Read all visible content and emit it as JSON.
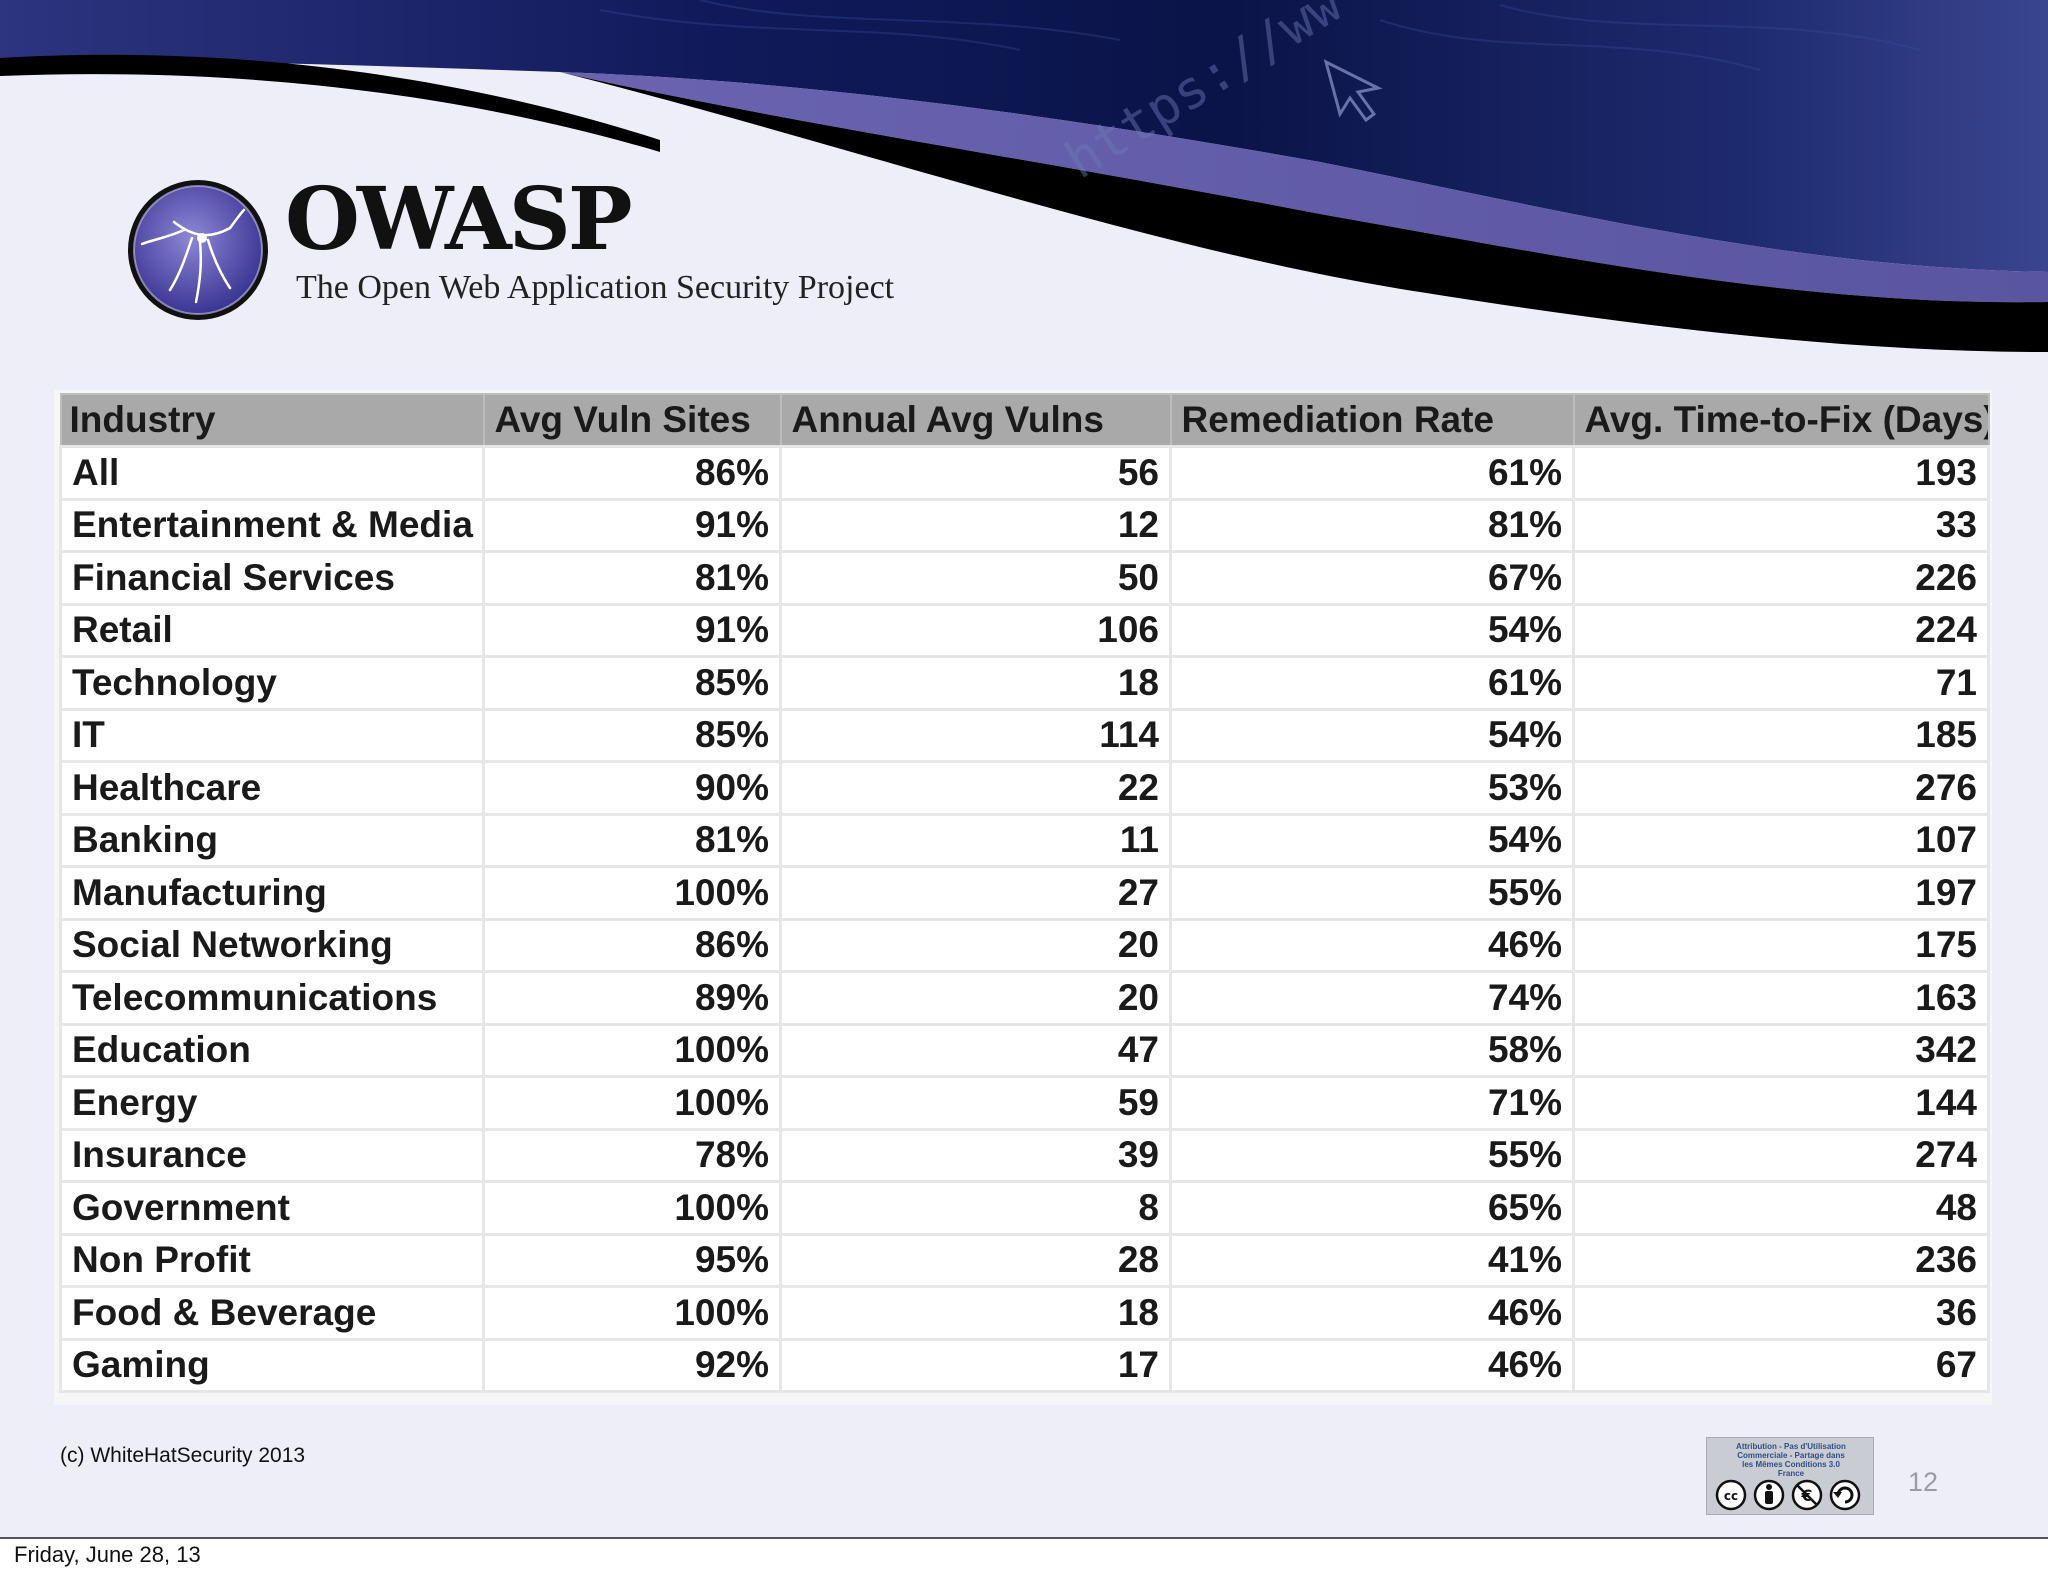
{
  "header": {
    "brand_name": "OWASP",
    "tagline": "The Open Web Application Security Project",
    "url_text": "https://ww"
  },
  "table": {
    "columns": [
      "Industry",
      "Avg Vuln Sites",
      "Annual Avg Vulns",
      "Remediation Rate",
      "Avg. Time-to-Fix (Days)"
    ],
    "rows": [
      [
        "All",
        "86%",
        "56",
        "61%",
        "193"
      ],
      [
        "Entertainment & Media",
        "91%",
        "12",
        "81%",
        "33"
      ],
      [
        "Financial Services",
        "81%",
        "50",
        "67%",
        "226"
      ],
      [
        "Retail",
        "91%",
        "106",
        "54%",
        "224"
      ],
      [
        "Technology",
        "85%",
        "18",
        "61%",
        "71"
      ],
      [
        "IT",
        "85%",
        "114",
        "54%",
        "185"
      ],
      [
        "Healthcare",
        "90%",
        "22",
        "53%",
        "276"
      ],
      [
        "Banking",
        "81%",
        "11",
        "54%",
        "107"
      ],
      [
        "Manufacturing",
        "100%",
        "27",
        "55%",
        "197"
      ],
      [
        "Social Networking",
        "86%",
        "20",
        "46%",
        "175"
      ],
      [
        "Telecommunications",
        "89%",
        "20",
        "74%",
        "163"
      ],
      [
        "Education",
        "100%",
        "47",
        "58%",
        "342"
      ],
      [
        "Energy",
        "100%",
        "59",
        "71%",
        "144"
      ],
      [
        "Insurance",
        "78%",
        "39",
        "55%",
        "274"
      ],
      [
        "Government",
        "100%",
        "8",
        "65%",
        "48"
      ],
      [
        "Non Profit",
        "95%",
        "28",
        "41%",
        "236"
      ],
      [
        "Food & Beverage",
        "100%",
        "18",
        "46%",
        "36"
      ],
      [
        "Gaming",
        "92%",
        "17",
        "46%",
        "67"
      ]
    ]
  },
  "footer": {
    "copyright": "(c) WhiteHatSecurity 2013",
    "license_text": "Attribution - Pas d'Utilisation\nCommerciale - Partage dans\nles Mêmes Conditions 3.0\nFrance",
    "license_icons": [
      "cc-icon",
      "by-icon",
      "nc-icon",
      "sa-icon"
    ],
    "slide_number": "12",
    "date": "Friday, June 28, 13"
  },
  "colors": {
    "slide_background": "#eeeef9",
    "wave_purple": "#5a55a0",
    "header_dark": "#0a0d3a",
    "table_header": "#a9a9a9"
  }
}
